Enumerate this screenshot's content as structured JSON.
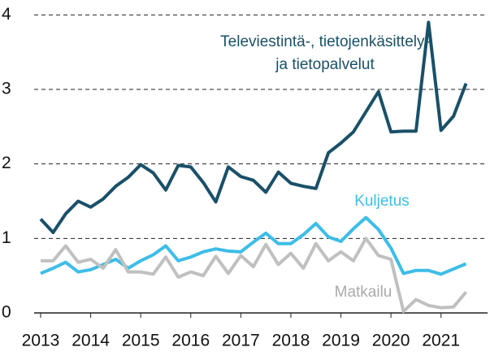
{
  "chart_data": {
    "type": "line",
    "x": [
      2013,
      2013.25,
      2013.5,
      2013.75,
      2014,
      2014.25,
      2014.5,
      2014.75,
      2015,
      2015.25,
      2015.5,
      2015.75,
      2016,
      2016.25,
      2016.5,
      2016.75,
      2017,
      2017.25,
      2017.5,
      2017.75,
      2018,
      2018.25,
      2018.5,
      2018.75,
      2019,
      2019.25,
      2019.5,
      2019.75,
      2020,
      2020.25,
      2020.5,
      2020.75,
      2021,
      2021.25,
      2021.5
    ],
    "series": [
      {
        "name": [
          "Televiestintä-, tietojenkäsittely-",
          "ja tietopalvelut"
        ],
        "color": "#1a5068",
        "values": [
          1.26,
          1.08,
          1.33,
          1.5,
          1.42,
          1.53,
          1.7,
          1.82,
          1.99,
          1.88,
          1.65,
          1.98,
          1.96,
          1.75,
          1.49,
          1.96,
          1.83,
          1.78,
          1.62,
          1.89,
          1.74,
          1.7,
          1.67,
          2.15,
          2.28,
          2.43,
          2.7,
          2.97,
          2.43,
          2.44,
          2.44,
          3.9,
          2.45,
          2.64,
          3.08
        ]
      },
      {
        "name": "Kuljetus",
        "color": "#3dbde8",
        "values": [
          0.53,
          0.6,
          0.68,
          0.55,
          0.58,
          0.65,
          0.72,
          0.6,
          0.7,
          0.78,
          0.9,
          0.7,
          0.75,
          0.82,
          0.86,
          0.83,
          0.82,
          0.95,
          1.07,
          0.93,
          0.93,
          1.05,
          1.2,
          1.02,
          0.96,
          1.13,
          1.28,
          1.12,
          0.87,
          0.53,
          0.57,
          0.57,
          0.52,
          0.59,
          0.66
        ]
      },
      {
        "name": "Matkailu",
        "color": "#c0c0c0",
        "values": [
          0.7,
          0.7,
          0.9,
          0.68,
          0.72,
          0.6,
          0.85,
          0.55,
          0.55,
          0.52,
          0.75,
          0.48,
          0.55,
          0.5,
          0.76,
          0.53,
          0.77,
          0.62,
          0.92,
          0.65,
          0.8,
          0.6,
          0.93,
          0.7,
          0.82,
          0.7,
          1.0,
          0.77,
          0.72,
          0.02,
          0.18,
          0.1,
          0.07,
          0.08,
          0.28
        ]
      }
    ],
    "xlim": [
      2012.87,
      2021.93
    ],
    "xticks": [
      2013,
      2014,
      2015,
      2016,
      2017,
      2018,
      2019,
      2020,
      2021
    ],
    "ylim": [
      0,
      4.2
    ],
    "yticks": [
      0,
      1,
      2,
      3,
      4
    ],
    "grid": true
  }
}
